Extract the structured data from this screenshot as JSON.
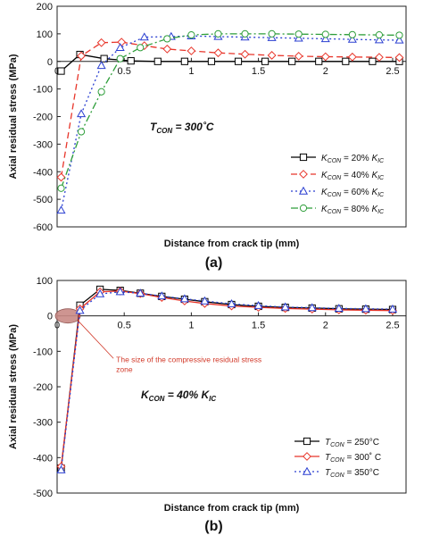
{
  "chart_data": [
    {
      "type": "line",
      "panel_label": "(a)",
      "xlabel": "Distance from crack tip (mm)",
      "ylabel": "Axial residual stress (MPa)",
      "xlim": [
        0,
        2.6
      ],
      "ylim": [
        -600,
        200
      ],
      "xticks": [
        0,
        0.5,
        1,
        1.5,
        2,
        2.5
      ],
      "xtick_labels": [
        "0",
        "0.5",
        "1",
        "1.5",
        "2",
        "2.5"
      ],
      "yticks": [
        200,
        100,
        0,
        -100,
        -200,
        -300,
        -400,
        -500,
        -600
      ],
      "ytick_labels": [
        "200",
        "100",
        "0",
        "-100",
        "-200",
        "-300",
        "-400",
        "-500",
        "-600"
      ],
      "annotation": {
        "main": "T",
        "sub": "CON",
        "rest": " = 300˚C"
      },
      "legend_position": "bottom-right",
      "grid": false,
      "series": [
        {
          "legend": {
            "k": "K",
            "ksub": "CON",
            "pct": " = 20% ",
            "ic": "K",
            "icsub": "IC"
          },
          "color": "#000000",
          "dash": "",
          "marker": "square",
          "x": [
            0.03,
            0.17,
            0.35,
            0.55,
            0.75,
            0.95,
            1.15,
            1.35,
            1.55,
            1.75,
            1.95,
            2.15,
            2.35,
            2.55
          ],
          "y": [
            -35,
            25,
            10,
            2,
            0,
            0,
            0,
            0,
            0,
            0,
            0,
            0,
            0,
            0
          ]
        },
        {
          "legend": {
            "k": "K",
            "ksub": "CON",
            "pct": " = 40% ",
            "ic": "K",
            "icsub": "IC"
          },
          "color": "#e8352a",
          "dash": "7,4",
          "marker": "diamond",
          "x": [
            0.03,
            0.18,
            0.33,
            0.48,
            0.65,
            0.82,
            1.0,
            1.2,
            1.4,
            1.6,
            1.8,
            2.0,
            2.2,
            2.4,
            2.55
          ],
          "y": [
            -420,
            20,
            68,
            70,
            57,
            45,
            38,
            31,
            26,
            22,
            19,
            17,
            16,
            15,
            14
          ]
        },
        {
          "legend": {
            "k": "K",
            "ksub": "CON",
            "pct": " = 60% ",
            "ic": "K",
            "icsub": "IC"
          },
          "color": "#2a3fd1",
          "dash": "2,3",
          "marker": "triangle",
          "x": [
            0.03,
            0.18,
            0.33,
            0.47,
            0.65,
            0.85,
            1.0,
            1.2,
            1.4,
            1.6,
            1.8,
            2.0,
            2.2,
            2.4,
            2.55
          ],
          "y": [
            -540,
            -190,
            -15,
            50,
            88,
            90,
            92,
            90,
            88,
            86,
            84,
            82,
            80,
            78,
            77
          ]
        },
        {
          "legend": {
            "k": "K",
            "ksub": "CON",
            "pct": " = 80% ",
            "ic": "K",
            "icsub": "IC"
          },
          "color": "#2e9e3a",
          "dash": "8,3,2,3",
          "marker": "circle",
          "x": [
            0.03,
            0.18,
            0.33,
            0.47,
            0.62,
            0.82,
            1.0,
            1.2,
            1.4,
            1.6,
            1.8,
            2.0,
            2.2,
            2.4,
            2.55
          ],
          "y": [
            -460,
            -255,
            -110,
            10,
            50,
            82,
            96,
            100,
            100,
            100,
            99,
            98,
            97,
            96,
            95
          ]
        }
      ]
    },
    {
      "type": "line",
      "panel_label": "(b)",
      "xlabel": "Distance from crack tip (mm)",
      "ylabel": "Axial residual stress (MPa)",
      "xlim": [
        0,
        2.6
      ],
      "ylim": [
        -500,
        100
      ],
      "xticks": [
        0,
        0.5,
        1,
        1.5,
        2,
        2.5
      ],
      "xtick_labels": [
        "0",
        "0.5",
        "1",
        "1.5",
        "2",
        "2.5"
      ],
      "yticks": [
        100,
        0,
        -100,
        -200,
        -300,
        -400,
        -500
      ],
      "ytick_labels": [
        "100",
        "0",
        "-100",
        "-200",
        "-300",
        "-400",
        "-500"
      ],
      "annotation": {
        "main": "K",
        "sub": "CON",
        "rest": " = 40% ",
        "main2": "K",
        "sub2": "IC"
      },
      "compressive_zone_note": [
        "The size of the compressive residual stress",
        "zone"
      ],
      "compressive_zone_color": "#c98a86",
      "legend_position": "bottom-right",
      "grid": false,
      "series": [
        {
          "legend": {
            "t": "T",
            "tsub": "CON",
            "rest": " = 250°C"
          },
          "color": "#000000",
          "dash": "",
          "marker": "square",
          "x": [
            0.03,
            0.17,
            0.32,
            0.47,
            0.62,
            0.78,
            0.95,
            1.1,
            1.3,
            1.5,
            1.7,
            1.9,
            2.1,
            2.3,
            2.5
          ],
          "y": [
            -430,
            30,
            75,
            72,
            64,
            55,
            47,
            40,
            32,
            27,
            24,
            22,
            20,
            19,
            18
          ]
        },
        {
          "legend": {
            "t": "T",
            "tsub": "CON",
            "rest": " = 300˚ C"
          },
          "color": "#e8352a",
          "dash": "",
          "marker": "diamond",
          "x": [
            0.03,
            0.17,
            0.32,
            0.47,
            0.62,
            0.78,
            0.95,
            1.1,
            1.3,
            1.5,
            1.7,
            1.9,
            2.1,
            2.3,
            2.5
          ],
          "y": [
            -425,
            20,
            68,
            70,
            63,
            52,
            42,
            35,
            28,
            24,
            21,
            19,
            17,
            16,
            15
          ]
        },
        {
          "legend": {
            "t": "T",
            "tsub": "CON",
            "rest": " = 350°C"
          },
          "color": "#2a3fd1",
          "dash": "2,3",
          "marker": "triangle",
          "x": [
            0.03,
            0.17,
            0.32,
            0.47,
            0.62,
            0.78,
            0.95,
            1.1,
            1.3,
            1.5,
            1.7,
            1.9,
            2.1,
            2.3,
            2.5
          ],
          "y": [
            -435,
            15,
            62,
            68,
            64,
            56,
            48,
            42,
            34,
            29,
            25,
            23,
            21,
            20,
            19
          ]
        }
      ]
    }
  ]
}
